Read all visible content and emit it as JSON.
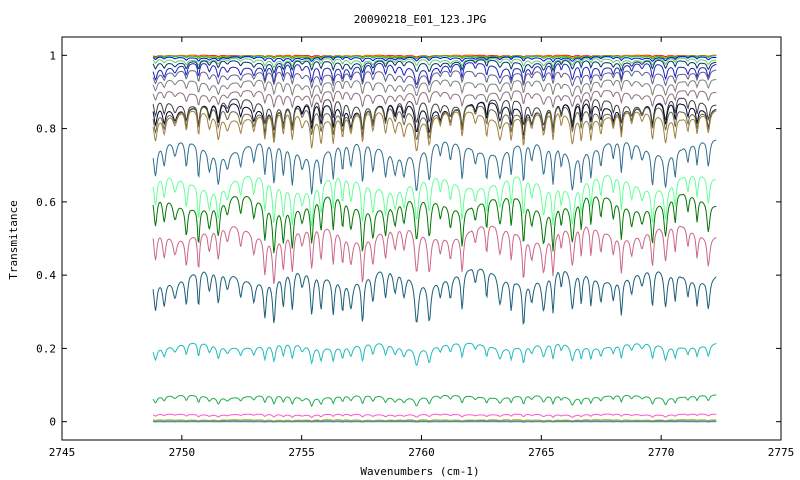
{
  "chart_data": {
    "type": "line",
    "title": "20090218_E01_123.JPG",
    "xlabel": "Wavenumbers (cm-1)",
    "ylabel": "Transmitance",
    "xlim": [
      2745,
      2775
    ],
    "ylim": [
      -0.05,
      1.05
    ],
    "x_ticks": [
      2745,
      2750,
      2755,
      2760,
      2765,
      2770,
      2775
    ],
    "y_ticks": [
      0,
      0.2,
      0.4,
      0.6,
      0.8,
      1
    ],
    "x_range_of_data": [
      2748.8,
      2772.3
    ],
    "grid": false,
    "legend": "none",
    "series": [
      {
        "color": "#ff0000",
        "baseline": 1.0,
        "depth": 0.004
      },
      {
        "color": "#ff9900",
        "baseline": 0.999,
        "depth": 0.006
      },
      {
        "color": "#00cc00",
        "baseline": 0.998,
        "depth": 0.008
      },
      {
        "color": "#0000ff",
        "baseline": 0.995,
        "depth": 0.012
      },
      {
        "color": "#66cc66",
        "baseline": 0.99,
        "depth": 0.02
      },
      {
        "color": "#003366",
        "baseline": 0.985,
        "depth": 0.03
      },
      {
        "color": "#1f1fbf",
        "baseline": 0.975,
        "depth": 0.05
      },
      {
        "color": "#5f5f8f",
        "baseline": 0.955,
        "depth": 0.04
      },
      {
        "color": "#7f7f7f",
        "baseline": 0.93,
        "depth": 0.04
      },
      {
        "color": "#8f6f7f",
        "baseline": 0.9,
        "depth": 0.04
      },
      {
        "color": "#3f3f3f",
        "baseline": 0.875,
        "depth": 0.07
      },
      {
        "color": "#000033",
        "baseline": 0.865,
        "depth": 0.08
      },
      {
        "color": "#66663f",
        "baseline": 0.855,
        "depth": 0.08
      },
      {
        "color": "#9f7f3f",
        "baseline": 0.84,
        "depth": 0.09
      },
      {
        "color": "#2f6f8f",
        "baseline": 0.755,
        "depth": 0.12
      },
      {
        "color": "#66ff99",
        "baseline": 0.66,
        "depth": 0.12
      },
      {
        "color": "#007700",
        "baseline": 0.605,
        "depth": 0.13
      },
      {
        "color": "#cc6688",
        "baseline": 0.525,
        "depth": 0.13
      },
      {
        "color": "#1a5f7a",
        "baseline": 0.405,
        "depth": 0.13
      },
      {
        "color": "#22bbbb",
        "baseline": 0.21,
        "depth": 0.05
      },
      {
        "color": "#22aa55",
        "baseline": 0.07,
        "depth": 0.025
      },
      {
        "color": "#ff55cc",
        "baseline": 0.02,
        "depth": 0.008
      },
      {
        "color": "#aaaa00",
        "baseline": 0.005,
        "depth": 0.003
      },
      {
        "color": "#777777",
        "baseline": 0.002,
        "depth": 0.002
      },
      {
        "color": "#3399cc",
        "baseline": 0.0,
        "depth": 0.001
      }
    ]
  }
}
